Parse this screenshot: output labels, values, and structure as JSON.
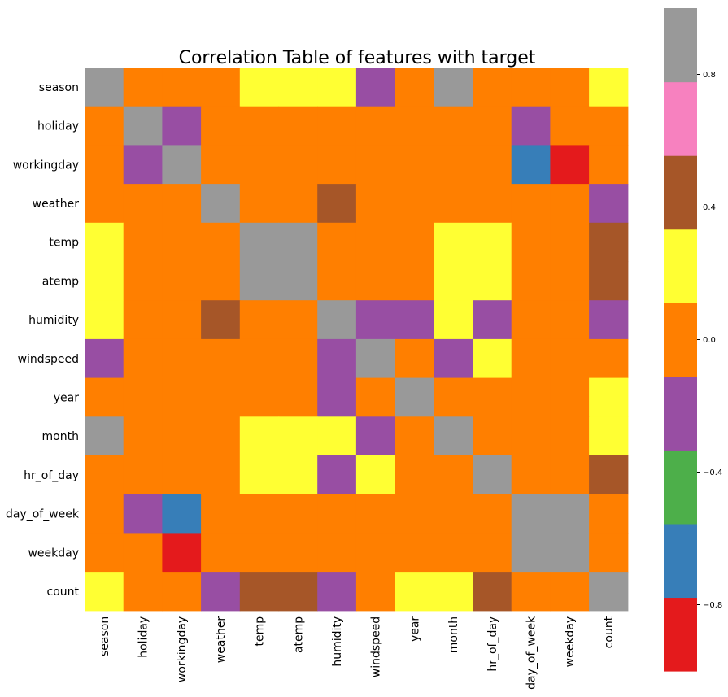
{
  "chart_data": {
    "type": "heatmap",
    "title": "Correlation Table of features with target",
    "xlabel": "",
    "ylabel": "",
    "labels": [
      "season",
      "holiday",
      "workingday",
      "weather",
      "temp",
      "atemp",
      "humidity",
      "windspeed",
      "year",
      "month",
      "hr_of_day",
      "day_of_week",
      "weekday",
      "count"
    ],
    "values": [
      [
        1.0,
        0.0,
        0.0,
        0.0,
        0.3,
        0.3,
        0.3,
        -0.2,
        0.0,
        1.0,
        0.0,
        0.0,
        0.0,
        0.3
      ],
      [
        0.0,
        1.0,
        -0.2,
        0.0,
        0.0,
        0.0,
        0.0,
        0.0,
        0.0,
        0.0,
        0.0,
        -0.2,
        0.0,
        0.0
      ],
      [
        0.0,
        -0.2,
        1.0,
        0.0,
        0.0,
        0.0,
        0.0,
        0.0,
        0.0,
        0.0,
        0.0,
        -0.7,
        -0.9,
        0.0
      ],
      [
        0.0,
        0.0,
        0.0,
        1.0,
        0.0,
        0.0,
        0.4,
        0.0,
        0.0,
        0.0,
        0.0,
        0.0,
        0.0,
        -0.2
      ],
      [
        0.3,
        0.0,
        0.0,
        0.0,
        1.0,
        1.0,
        0.0,
        0.0,
        0.0,
        0.3,
        0.3,
        0.0,
        0.0,
        0.4
      ],
      [
        0.3,
        0.0,
        0.0,
        0.0,
        1.0,
        1.0,
        0.0,
        0.0,
        0.0,
        0.3,
        0.3,
        0.0,
        0.0,
        0.4
      ],
      [
        0.3,
        0.0,
        0.0,
        0.4,
        0.0,
        0.0,
        1.0,
        -0.2,
        -0.2,
        0.3,
        -0.2,
        0.0,
        0.0,
        -0.2
      ],
      [
        -0.2,
        0.0,
        0.0,
        0.0,
        0.0,
        0.0,
        -0.2,
        1.0,
        0.0,
        -0.2,
        0.3,
        0.0,
        0.0,
        0.0
      ],
      [
        0.0,
        0.0,
        0.0,
        0.0,
        0.0,
        0.0,
        -0.2,
        0.0,
        1.0,
        0.0,
        0.0,
        0.0,
        0.0,
        0.3
      ],
      [
        1.0,
        0.0,
        0.0,
        0.0,
        0.3,
        0.3,
        0.3,
        -0.2,
        0.0,
        1.0,
        0.0,
        0.0,
        0.0,
        0.3
      ],
      [
        0.0,
        0.0,
        0.0,
        0.0,
        0.3,
        0.3,
        -0.2,
        0.3,
        0.0,
        0.0,
        1.0,
        0.0,
        0.0,
        0.4
      ],
      [
        0.0,
        -0.2,
        -0.7,
        0.0,
        0.0,
        0.0,
        0.0,
        0.0,
        0.0,
        0.0,
        0.0,
        1.0,
        1.0,
        0.0
      ],
      [
        0.0,
        0.0,
        -0.9,
        0.0,
        0.0,
        0.0,
        0.0,
        0.0,
        0.0,
        0.0,
        0.0,
        1.0,
        1.0,
        0.0
      ],
      [
        0.3,
        0.0,
        0.0,
        -0.2,
        0.4,
        0.4,
        -0.2,
        0.0,
        0.3,
        0.3,
        0.4,
        0.0,
        0.0,
        1.0
      ]
    ],
    "colorbar": {
      "min": -1.0,
      "max": 1.0,
      "ticks": [
        0.8,
        0.4,
        0.0,
        -0.4,
        -0.8
      ],
      "tick_labels": [
        "0.8",
        "0.4",
        "0.0",
        "−0.4",
        "−0.8"
      ],
      "colors_low_to_high": [
        "#e41a1c",
        "#377eb8",
        "#4daf4a",
        "#984ea3",
        "#ff7f00",
        "#ffff33",
        "#a65628",
        "#f781bf",
        "#999999"
      ]
    },
    "grid": false,
    "legend": "colorbar-right"
  }
}
